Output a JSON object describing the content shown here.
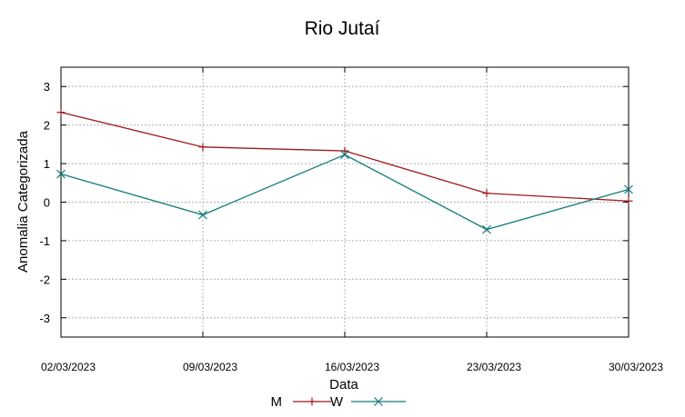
{
  "chart_data": {
    "type": "line",
    "title": "Rio Jutaí",
    "xlabel": "Data",
    "ylabel": "Anomalia Categorizada",
    "categories": [
      "02/03/2023",
      "09/03/2023",
      "16/03/2023",
      "23/03/2023",
      "30/03/2023"
    ],
    "y_ticks": [
      "3",
      "2",
      "1",
      "0",
      "-1",
      "-2",
      "-3"
    ],
    "ylim": [
      -3.5,
      3.5
    ],
    "grid": true,
    "legend_position": "bottom",
    "series": [
      {
        "name": "M",
        "color": "#a0191c",
        "marker": "plus",
        "values": [
          2.33,
          1.43,
          1.33,
          0.23,
          0.03
        ]
      },
      {
        "name": "W",
        "color": "#147a7a",
        "marker": "cross",
        "values": [
          0.73,
          -0.33,
          1.23,
          -0.71,
          0.33
        ]
      }
    ]
  }
}
